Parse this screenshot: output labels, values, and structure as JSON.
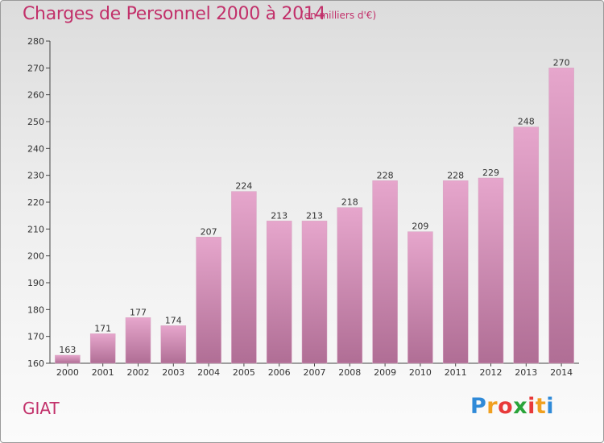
{
  "title": "Charges de Personnel 2000 à 2014",
  "subtitle": "(en milliers d'€)",
  "place": "GIAT",
  "logo": {
    "letters": [
      "P",
      "r",
      "o",
      "x",
      "i",
      "t",
      "i"
    ],
    "colors": [
      "#2f8ad8",
      "#f0a020",
      "#e83a3a",
      "#2aa43a",
      "#e83a3a",
      "#f0a020",
      "#2f8ad8"
    ]
  },
  "colors": {
    "bar_top": "#e6a6cc",
    "bar_bottom": "#b06e95",
    "title": "#c2306a"
  },
  "chart_data": {
    "type": "bar",
    "title": "Charges de Personnel 2000 à 2014",
    "subtitle": "(en milliers d'€)",
    "categories": [
      "2000",
      "2001",
      "2002",
      "2003",
      "2004",
      "2005",
      "2006",
      "2007",
      "2008",
      "2009",
      "2010",
      "2011",
      "2012",
      "2013",
      "2014"
    ],
    "values": [
      163,
      171,
      177,
      174,
      207,
      224,
      213,
      213,
      218,
      228,
      209,
      228,
      229,
      248,
      270
    ],
    "ylim": [
      160,
      280
    ],
    "yticks": [
      160,
      170,
      180,
      190,
      200,
      210,
      220,
      230,
      240,
      250,
      260,
      270,
      280
    ],
    "grid": false
  }
}
